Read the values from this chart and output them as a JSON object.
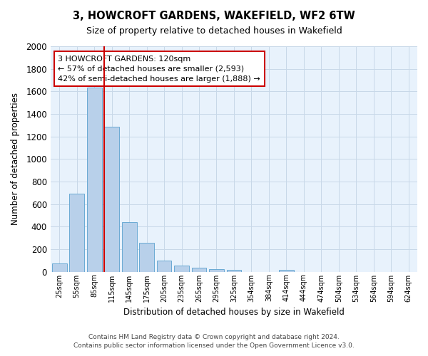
{
  "title": "3, HOWCROFT GARDENS, WAKEFIELD, WF2 6TW",
  "subtitle": "Size of property relative to detached houses in Wakefield",
  "xlabel": "Distribution of detached houses by size in Wakefield",
  "ylabel": "Number of detached properties",
  "bar_labels": [
    "25sqm",
    "55sqm",
    "85sqm",
    "115sqm",
    "145sqm",
    "175sqm",
    "205sqm",
    "235sqm",
    "265sqm",
    "295sqm",
    "325sqm",
    "354sqm",
    "384sqm",
    "414sqm",
    "444sqm",
    "474sqm",
    "504sqm",
    "534sqm",
    "564sqm",
    "594sqm",
    "624sqm"
  ],
  "bar_values": [
    70,
    695,
    1635,
    1285,
    440,
    255,
    95,
    55,
    38,
    22,
    15,
    0,
    0,
    15,
    0,
    0,
    0,
    0,
    0,
    0,
    0
  ],
  "bar_color": "#b8d0ea",
  "bar_edge_color": "#6aaad4",
  "vline_color": "#cc0000",
  "annotation_text": "3 HOWCROFT GARDENS: 120sqm\n← 57% of detached houses are smaller (2,593)\n42% of semi-detached houses are larger (1,888) →",
  "annotation_box_color": "#ffffff",
  "annotation_box_edge_color": "#cc0000",
  "ylim": [
    0,
    2000
  ],
  "yticks": [
    0,
    200,
    400,
    600,
    800,
    1000,
    1200,
    1400,
    1600,
    1800,
    2000
  ],
  "background_color": "#ffffff",
  "plot_bg_color": "#e8f2fc",
  "grid_color": "#c8d8e8",
  "footer_line1": "Contains HM Land Registry data © Crown copyright and database right 2024.",
  "footer_line2": "Contains public sector information licensed under the Open Government Licence v3.0."
}
